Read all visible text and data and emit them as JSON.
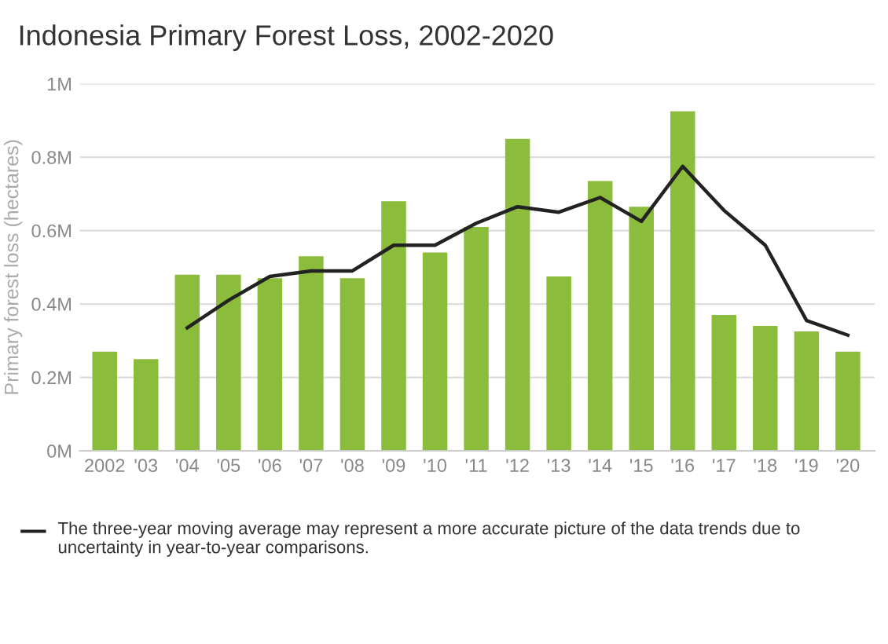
{
  "chart_data": {
    "type": "bar",
    "title": "Indonesia Primary Forest Loss, 2002-2020",
    "ylabel": "Primary forest loss (hectares)",
    "categories": [
      "2002",
      "'03",
      "'04",
      "'05",
      "'06",
      "'07",
      "'08",
      "'09",
      "'10",
      "'11",
      "'12",
      "'13",
      "'14",
      "'15",
      "'16",
      "'17",
      "'18",
      "'19",
      "'20"
    ],
    "series": [
      {
        "color": "#8cbc3c",
        "values": [
          0.27,
          0.25,
          0.48,
          0.48,
          0.47,
          0.53,
          0.47,
          0.68,
          0.54,
          0.61,
          0.85,
          0.475,
          0.735,
          0.665,
          0.925,
          0.37,
          0.34,
          0.325,
          0.27
        ]
      },
      {
        "type": "line",
        "name": "The three-year moving average may represent a more accurate picture of the data trends due to uncertainty in year-to-year comparisons.",
        "color": "#222222",
        "values": [
          null,
          null,
          0.335,
          0.41,
          0.475,
          0.49,
          0.49,
          0.56,
          0.56,
          0.62,
          0.665,
          0.65,
          0.69,
          0.625,
          0.775,
          0.655,
          0.56,
          0.355,
          0.315
        ]
      }
    ],
    "ylim": [
      0,
      1
    ],
    "yticks": [
      {
        "value": 0,
        "label": "0M"
      },
      {
        "value": 0.2,
        "label": "0.2M"
      },
      {
        "value": 0.4,
        "label": "0.4M"
      },
      {
        "value": 0.6,
        "label": "0.6M"
      },
      {
        "value": 0.8,
        "label": "0.8M"
      },
      {
        "value": 1,
        "label": "1M"
      }
    ],
    "grid": "y",
    "legend": "bottom",
    "line_style": "solid",
    "marker": "none"
  }
}
